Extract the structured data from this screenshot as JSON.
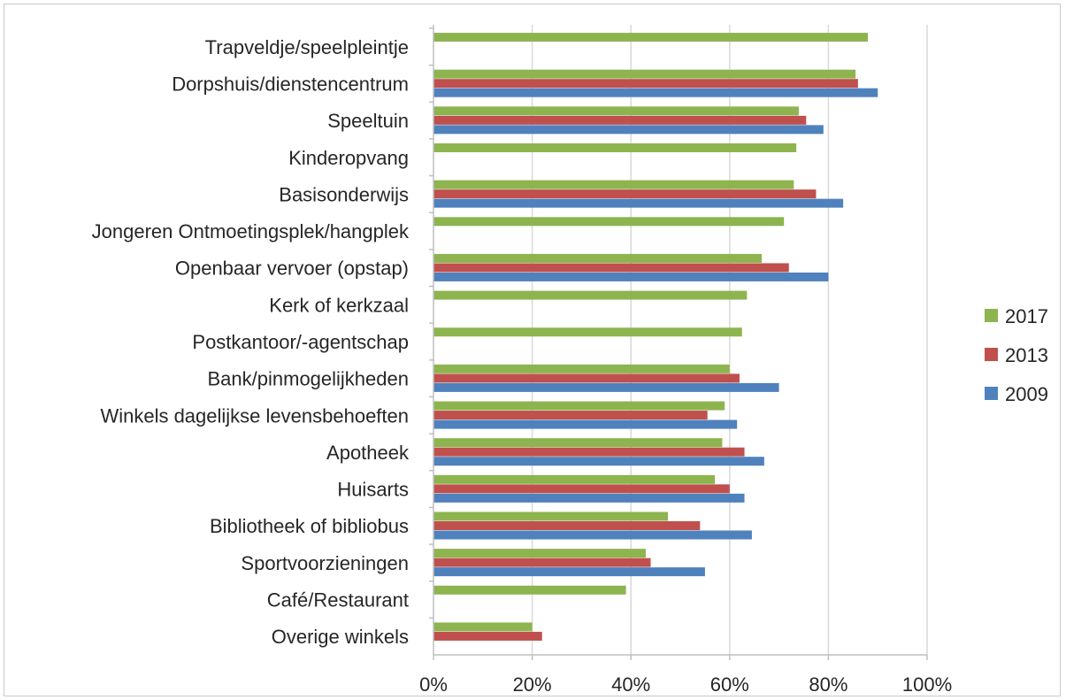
{
  "chart_data": {
    "type": "bar",
    "orientation": "horizontal",
    "categories": [
      "Trapveldje/speelpleintje",
      "Dorpshuis/dienstencentrum",
      "Speeltuin",
      "Kinderopvang",
      "Basisonderwijs",
      "Jongeren Ontmoetingsplek/hangplek",
      "Openbaar vervoer (opstap)",
      "Kerk of kerkzaal",
      "Postkantoor/-agentschap",
      "Bank/pinmogelijkheden",
      "Winkels dagelijkse levensbehoeften",
      "Apotheek",
      "Huisarts",
      "Bibliotheek of bibliobus",
      "Sportvoorzieningen",
      "Café/Restaurant",
      "Overige winkels"
    ],
    "series": [
      {
        "name": "2017",
        "color": "#8db44f",
        "values": [
          0.88,
          0.855,
          0.74,
          0.735,
          0.73,
          0.71,
          0.665,
          0.635,
          0.625,
          0.6,
          0.59,
          0.585,
          0.57,
          0.475,
          0.43,
          0.39,
          0.2
        ]
      },
      {
        "name": "2013",
        "color": "#c0504d",
        "values": [
          null,
          0.86,
          0.755,
          null,
          0.775,
          null,
          0.72,
          null,
          null,
          0.62,
          0.555,
          0.63,
          0.6,
          0.54,
          0.44,
          null,
          0.22
        ]
      },
      {
        "name": "2009",
        "color": "#4f81bd",
        "values": [
          null,
          0.9,
          0.79,
          null,
          0.83,
          null,
          0.8,
          null,
          null,
          0.7,
          0.615,
          0.67,
          0.63,
          0.645,
          0.55,
          null,
          null
        ]
      }
    ],
    "xlim": [
      0,
      1
    ],
    "xticks": [
      "0%",
      "20%",
      "40%",
      "60%",
      "80%",
      "100%"
    ],
    "grid": true,
    "legend_position": "right",
    "title": "",
    "xlabel": "",
    "ylabel": ""
  }
}
